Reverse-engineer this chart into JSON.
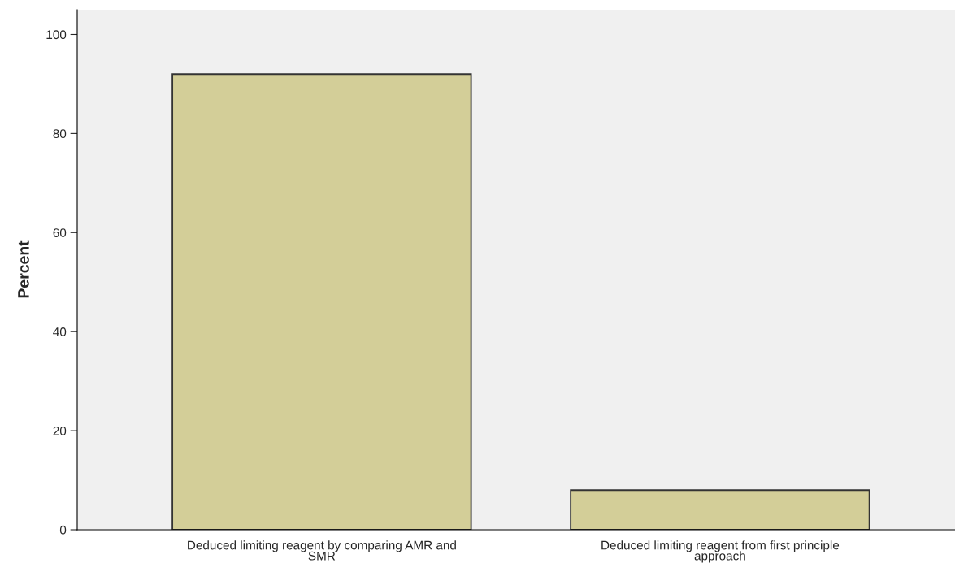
{
  "chart_data": {
    "type": "bar",
    "ylabel": "Percent",
    "categories": [
      "Deduced limiting reagent by comparing AMR and SMR",
      "Deduced limiting reagent from first principle approach"
    ],
    "values": [
      92,
      8
    ],
    "color": "#d3ce98",
    "ylim": [
      0,
      105
    ],
    "yticks": [
      0,
      20,
      40,
      60,
      80,
      100
    ],
    "grid": false,
    "legend": false
  }
}
